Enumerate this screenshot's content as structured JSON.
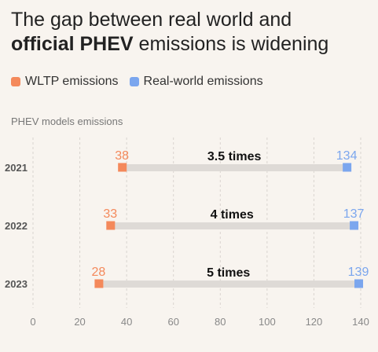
{
  "header": {
    "title_line1": "The gap between real world and",
    "title_line2_bold": "official PHEV",
    "title_line2_rest": " emissions is widening"
  },
  "legend": {
    "items": [
      {
        "label": "WLTP emissions",
        "color": "#f4895b"
      },
      {
        "label": "Real-world emissions",
        "color": "#7ba6ee"
      }
    ]
  },
  "subtitle": "PHEV models emissions",
  "chart_data": {
    "type": "dumbbell",
    "categories": [
      "2021",
      "2022",
      "2023"
    ],
    "series": [
      {
        "name": "WLTP emissions",
        "values": [
          38,
          33,
          28
        ],
        "color": "#f4895b"
      },
      {
        "name": "Real-world emissions",
        "values": [
          134,
          137,
          139
        ],
        "color": "#7ba6ee"
      }
    ],
    "annotations": [
      "3.5 times",
      "4 times",
      "5 times"
    ],
    "xlim": [
      0,
      140
    ],
    "xticks": [
      0,
      20,
      40,
      60,
      80,
      100,
      120,
      140
    ],
    "grid": "vertical dashed",
    "legend_position": "top-left"
  }
}
